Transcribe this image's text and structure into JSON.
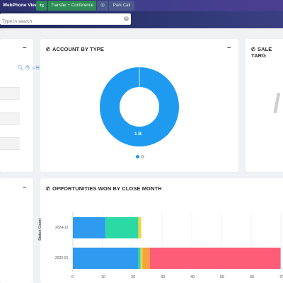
{
  "topbar": {
    "webphone_label": "WebPhone View",
    "transfer_label": "Transfer + Conference",
    "park_label": "Park Call"
  },
  "search": {
    "placeholder": "Type in search"
  },
  "cards": {
    "account_by_type": {
      "title": "ACCOUNT BY TYPE",
      "donut_label": "1 B",
      "donut_color": "#1e9bf0"
    },
    "sale_target": {
      "title": "SALE TARG"
    },
    "opportunities": {
      "title": "OPPORTUNITIES WON BY CLOSE MONTH"
    }
  },
  "chart_data": [
    {
      "type": "pie",
      "title": "ACCOUNT BY TYPE",
      "categories": [
        "B"
      ],
      "values": [
        1
      ],
      "colors": [
        "#1e9bf0"
      ]
    },
    {
      "type": "bar",
      "orientation": "horizontal",
      "stacked": true,
      "title": "OPPORTUNITIES WON BY CLOSE MONTH",
      "ylabel": "Status Count",
      "categories": [
        "2024-12",
        "2025-01"
      ],
      "xticks": [
        0,
        10,
        20,
        30,
        40,
        50,
        60,
        70
      ],
      "xlim": [
        0,
        70
      ],
      "series": [
        {
          "color": "#2e9bf0",
          "values": [
            11,
            22
          ]
        },
        {
          "color": "#2ad9a3",
          "values": [
            11,
            0.8
          ]
        },
        {
          "color": "#f5d33c",
          "values": [
            1,
            0.6
          ]
        },
        {
          "color": "#f5a23c",
          "values": [
            0,
            2.5
          ]
        },
        {
          "color": "#ff5c78",
          "values": [
            0,
            44
          ]
        }
      ]
    }
  ]
}
